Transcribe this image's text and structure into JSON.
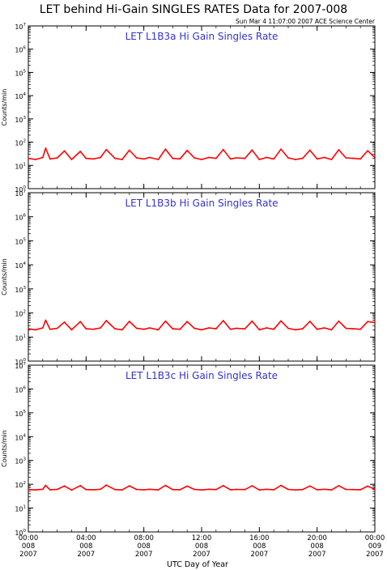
{
  "header": {
    "title": "LET behind Hi-Gain SINGLES RATES Data for 2007-008",
    "timestamp": "Sun Mar  4 11:07:00 2007 ACE Science Center"
  },
  "colors": {
    "series": "#ff0000",
    "panel_title": "#3333cc",
    "axis": "#000000"
  },
  "chart_data": {
    "type": "line",
    "title": "LET behind Hi-Gain SINGLES RATES Data for 2007-008",
    "xlabel": "UTC Day of Year",
    "x_unit": "hours",
    "xlim": [
      0,
      24
    ],
    "x_ticks": [
      {
        "x": 0,
        "l1": "00:00",
        "l2": "008",
        "l3": "2007"
      },
      {
        "x": 4,
        "l1": "04:00",
        "l2": "008",
        "l3": "2007"
      },
      {
        "x": 8,
        "l1": "08:00",
        "l2": "008",
        "l3": "2007"
      },
      {
        "x": 12,
        "l1": "12:00",
        "l2": "008",
        "l3": "2007"
      },
      {
        "x": 16,
        "l1": "16:00",
        "l2": "008",
        "l3": "2007"
      },
      {
        "x": 20,
        "l1": "20:00",
        "l2": "008",
        "l3": "2007"
      },
      {
        "x": 24,
        "l1": "00:00",
        "l2": "009",
        "l3": "2007"
      }
    ],
    "y_scale": "log",
    "ylim": [
      1,
      10000000
    ],
    "y_tick_labels": [
      {
        "exp": 0,
        "base": "10",
        "sup": "0"
      },
      {
        "exp": 1,
        "base": "10",
        "sup": "1"
      },
      {
        "exp": 2,
        "base": "10",
        "sup": "2"
      },
      {
        "exp": 3,
        "base": "10",
        "sup": "3"
      },
      {
        "exp": 4,
        "base": "10",
        "sup": "4"
      },
      {
        "exp": 5,
        "base": "10",
        "sup": "5"
      },
      {
        "exp": 6,
        "base": "10",
        "sup": "6"
      },
      {
        "exp": 7,
        "base": "10",
        "sup": "7"
      }
    ],
    "panels": [
      {
        "title": "LET L1B3a Hi Gain Singles Rate",
        "ylabel": "Counts/min",
        "series": [
          {
            "x": [
              0.0,
              0.5,
              1.0,
              1.2,
              1.5,
              2.0,
              2.5,
              3.0,
              3.6,
              4.0,
              4.5,
              5.0,
              5.4,
              6.0,
              6.5,
              7.0,
              7.5,
              8.0,
              8.4,
              9.0,
              9.5,
              10.0,
              10.5,
              11.0,
              11.5,
              12.0,
              12.5,
              13.0,
              13.5,
              14.0,
              14.4,
              15.0,
              15.5,
              16.0,
              16.5,
              17.0,
              17.5,
              18.0,
              18.5,
              19.0,
              19.5,
              20.0,
              20.5,
              21.0,
              21.5,
              22.0,
              22.5,
              23.0,
              23.5,
              24.0
            ],
            "y": [
              20,
              18,
              22,
              55,
              19,
              21,
              42,
              18,
              40,
              20,
              19,
              22,
              48,
              20,
              18,
              45,
              21,
              19,
              22,
              18,
              50,
              20,
              19,
              44,
              21,
              18,
              22,
              20,
              48,
              19,
              21,
              20,
              46,
              18,
              22,
              19,
              50,
              21,
              18,
              20,
              45,
              19,
              22,
              18,
              47,
              21,
              20,
              19,
              43,
              22
            ]
          }
        ]
      },
      {
        "title": "LET L1B3b Hi Gain Singles Rate",
        "ylabel": "Counts/min",
        "series": [
          {
            "x": [
              0.0,
              0.5,
              1.0,
              1.2,
              1.5,
              2.0,
              2.5,
              3.0,
              3.6,
              4.0,
              4.5,
              5.0,
              5.4,
              6.0,
              6.5,
              7.0,
              7.5,
              8.0,
              8.4,
              9.0,
              9.5,
              10.0,
              10.5,
              11.0,
              11.5,
              12.0,
              12.5,
              13.0,
              13.5,
              14.0,
              14.4,
              15.0,
              15.5,
              16.0,
              16.5,
              17.0,
              17.5,
              18.0,
              18.5,
              19.0,
              19.5,
              20.0,
              20.5,
              21.0,
              21.5,
              22.0,
              22.5,
              23.0,
              23.5,
              24.0
            ],
            "y": [
              22,
              20,
              24,
              50,
              21,
              23,
              42,
              20,
              44,
              22,
              21,
              24,
              48,
              22,
              20,
              45,
              23,
              21,
              24,
              20,
              46,
              22,
              21,
              44,
              23,
              20,
              24,
              22,
              48,
              21,
              23,
              22,
              46,
              20,
              24,
              21,
              47,
              23,
              20,
              22,
              45,
              21,
              24,
              20,
              46,
              23,
              22,
              21,
              44,
              40
            ]
          }
        ]
      },
      {
        "title": "LET L1B3c Hi Gain Singles Rate",
        "ylabel": "Counts/min",
        "series": [
          {
            "x": [
              0.0,
              0.5,
              1.0,
              1.2,
              1.5,
              2.0,
              2.5,
              3.0,
              3.6,
              4.0,
              4.5,
              5.0,
              5.4,
              6.0,
              6.5,
              7.0,
              7.5,
              8.0,
              8.4,
              9.0,
              9.5,
              10.0,
              10.5,
              11.0,
              11.5,
              12.0,
              12.5,
              13.0,
              13.5,
              14.0,
              14.4,
              15.0,
              15.5,
              16.0,
              16.5,
              17.0,
              17.5,
              18.0,
              18.5,
              19.0,
              19.5,
              20.0,
              20.5,
              21.0,
              21.5,
              22.0,
              22.5,
              23.0,
              23.5,
              24.0
            ],
            "y": [
              60,
              58,
              62,
              90,
              59,
              61,
              85,
              57,
              88,
              60,
              59,
              62,
              92,
              60,
              58,
              86,
              61,
              59,
              62,
              58,
              90,
              60,
              59,
              84,
              61,
              58,
              62,
              60,
              88,
              59,
              61,
              60,
              86,
              58,
              62,
              59,
              90,
              61,
              58,
              60,
              85,
              59,
              62,
              58,
              87,
              61,
              60,
              59,
              84,
              62
            ]
          }
        ]
      }
    ]
  }
}
